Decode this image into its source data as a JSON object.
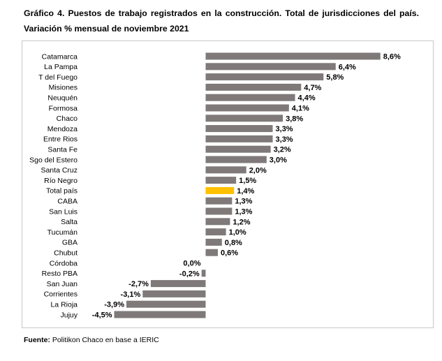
{
  "title_line1": "Gráfico 4. Puestos de trabajo registrados en la construcción. Total de jurisdicciones del país.",
  "title_line2": "Variación % mensual de noviembre 2021",
  "source_label": "Fuente:",
  "source_text": "Politikon Chaco en base a IERIC",
  "colors": {
    "bar": "#7f7979",
    "highlight": "#ffc000"
  },
  "chart_data": {
    "type": "bar",
    "orientation": "horizontal",
    "categories": [
      "Catamarca",
      "La Pampa",
      "T del Fuego",
      "Misiones",
      "Neuquén",
      "Formosa",
      "Chaco",
      "Mendoza",
      "Entre Rios",
      "Santa Fe",
      "Sgo del Estero",
      "Santa Cruz",
      "Río Negro",
      "Total país",
      "CABA",
      "San Luis",
      "Salta",
      "Tucumán",
      "GBA",
      "Chubut",
      "Córdoba",
      "Resto PBA",
      "San Juan",
      "Corrientes",
      "La Rioja",
      "Jujuy"
    ],
    "values": [
      8.6,
      6.4,
      5.8,
      4.7,
      4.4,
      4.1,
      3.8,
      3.3,
      3.3,
      3.2,
      3.0,
      2.0,
      1.5,
      1.4,
      1.3,
      1.3,
      1.2,
      1.0,
      0.8,
      0.6,
      0.0,
      -0.2,
      -2.7,
      -3.1,
      -3.9,
      -4.5
    ],
    "value_labels": [
      "8,6%",
      "6,4%",
      "5,8%",
      "4,7%",
      "4,4%",
      "4,1%",
      "3,8%",
      "3,3%",
      "3,3%",
      "3,2%",
      "3,0%",
      "2,0%",
      "1,5%",
      "1,4%",
      "1,3%",
      "1,3%",
      "1,2%",
      "1,0%",
      "0,8%",
      "0,6%",
      "0,0%",
      "-0,2%",
      "-2,7%",
      "-3,1%",
      "-3,9%",
      "-4,5%"
    ],
    "highlight": "Total país",
    "xlim": [
      -4.5,
      8.6
    ],
    "grid": false,
    "legend": false
  }
}
